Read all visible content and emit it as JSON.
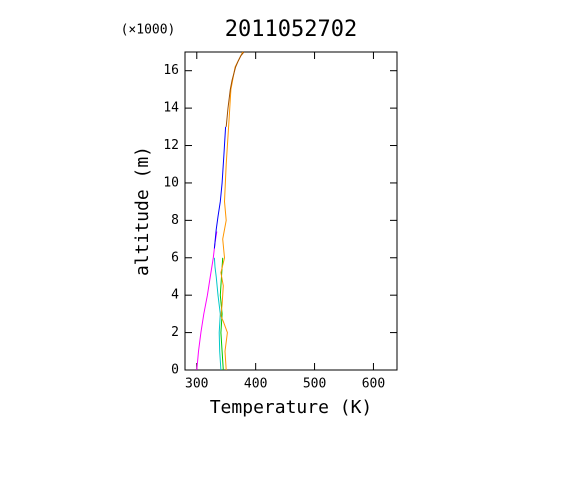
{
  "chart_data": {
    "type": "line",
    "title": "2011052702",
    "multiplier_label": "(×1000)",
    "x_label": "Temperature (K)",
    "y_label": "altitude (m)",
    "xlim": [
      280,
      640
    ],
    "xticks": [
      300,
      400,
      500,
      600
    ],
    "ylim": [
      0,
      17
    ],
    "yticks": [
      0,
      2,
      4,
      6,
      8,
      10,
      12,
      14,
      16
    ],
    "series": [
      {
        "color": "#ff00ff",
        "x": [
          300,
          303,
          307,
          312,
          318,
          323,
          328,
          331,
          334
        ],
        "values": [
          0,
          1,
          2,
          3,
          4,
          5,
          6,
          6.8,
          7.4
        ]
      },
      {
        "color": "#00c8c8",
        "x": [
          341,
          339,
          338,
          340,
          336,
          333,
          331,
          330
        ],
        "values": [
          0,
          1,
          2,
          3,
          4,
          5,
          5.5,
          6
        ]
      },
      {
        "color": "#00c800",
        "x": [
          345,
          343,
          341,
          343,
          340,
          342,
          344
        ],
        "values": [
          0,
          1,
          2,
          3,
          4,
          5,
          6
        ]
      },
      {
        "color": "#ff9600",
        "x": [
          350,
          348,
          352,
          345,
          341,
          343,
          345,
          341,
          347,
          344,
          350,
          347,
          350,
          352,
          355,
          358,
          365,
          378
        ],
        "values": [
          0,
          1,
          2,
          2.6,
          2.9,
          3.5,
          4.5,
          5.2,
          6,
          7,
          8,
          9,
          11,
          12,
          13.5,
          15,
          16.2,
          17
        ]
      },
      {
        "color": "#0000ff",
        "x": [
          330,
          333,
          336,
          340,
          343,
          346,
          349
        ],
        "values": [
          6.5,
          7.5,
          8.2,
          9,
          10,
          11.5,
          13
        ]
      },
      {
        "color": "#a05000",
        "x": [
          350,
          353,
          357,
          360,
          366,
          370,
          375,
          380
        ],
        "values": [
          13,
          14,
          15,
          15.5,
          16.2,
          16.5,
          16.8,
          17
        ]
      }
    ]
  }
}
